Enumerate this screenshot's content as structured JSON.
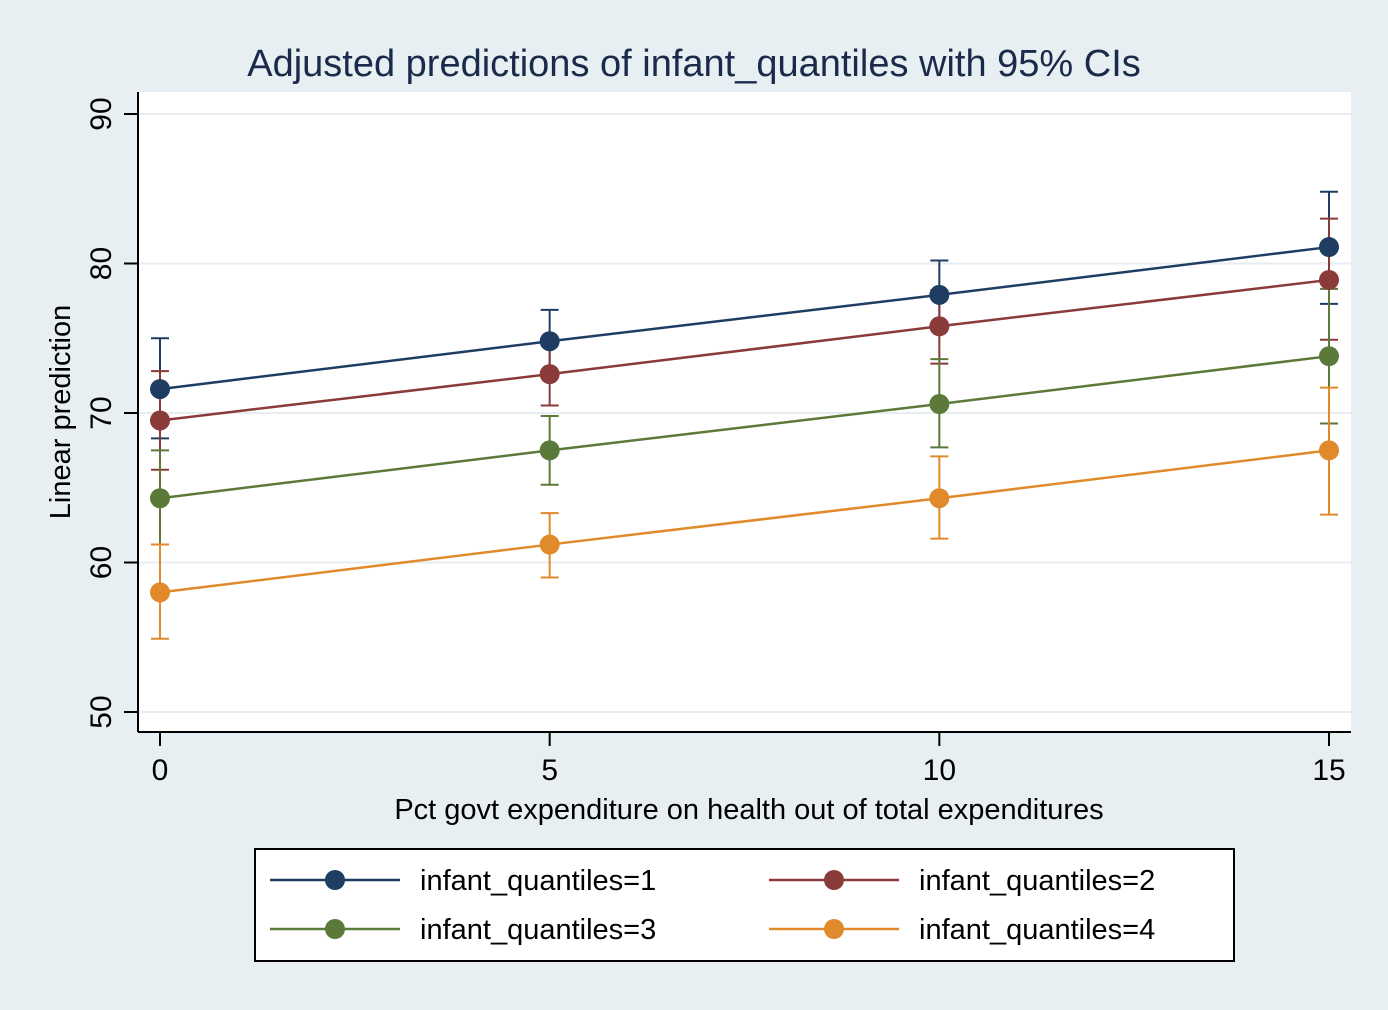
{
  "chart_data": {
    "type": "line",
    "title": "Adjusted predictions of infant_quantiles with 95% CIs",
    "xlabel": "Pct govt expenditure on health out of total expenditures",
    "ylabel": "Linear prediction",
    "x": [
      0,
      5,
      10,
      15
    ],
    "x_ticks": [
      "0",
      "5",
      "10",
      "15"
    ],
    "y_ticks": [
      "50",
      "60",
      "70",
      "80",
      "90"
    ],
    "xlim": [
      0,
      15
    ],
    "ylim": [
      50,
      90
    ],
    "grid": true,
    "legend_position": "bottom",
    "series": [
      {
        "name": "infant_quantiles=1",
        "color": "#1f3d63",
        "values": [
          71.6,
          74.8,
          77.9,
          81.1
        ],
        "ci_low": [
          68.3,
          72.7,
          75.6,
          77.3
        ],
        "ci_high": [
          75.0,
          76.9,
          80.2,
          84.8
        ]
      },
      {
        "name": "infant_quantiles=2",
        "color": "#8b3a3a",
        "values": [
          69.5,
          72.6,
          75.8,
          78.9
        ],
        "ci_low": [
          66.2,
          70.5,
          73.3,
          74.9
        ],
        "ci_high": [
          72.8,
          74.7,
          78.2,
          83.0
        ]
      },
      {
        "name": "infant_quantiles=3",
        "color": "#5b7a3a",
        "values": [
          64.3,
          67.5,
          70.6,
          73.8
        ],
        "ci_low": [
          61.2,
          65.2,
          67.7,
          69.3
        ],
        "ci_high": [
          67.5,
          69.8,
          73.6,
          78.3
        ]
      },
      {
        "name": "infant_quantiles=4",
        "color": "#e08a2c",
        "values": [
          58.0,
          61.2,
          64.3,
          67.5
        ],
        "ci_low": [
          54.9,
          59.0,
          61.6,
          63.2
        ],
        "ci_high": [
          61.2,
          63.3,
          67.1,
          71.7
        ]
      }
    ]
  }
}
